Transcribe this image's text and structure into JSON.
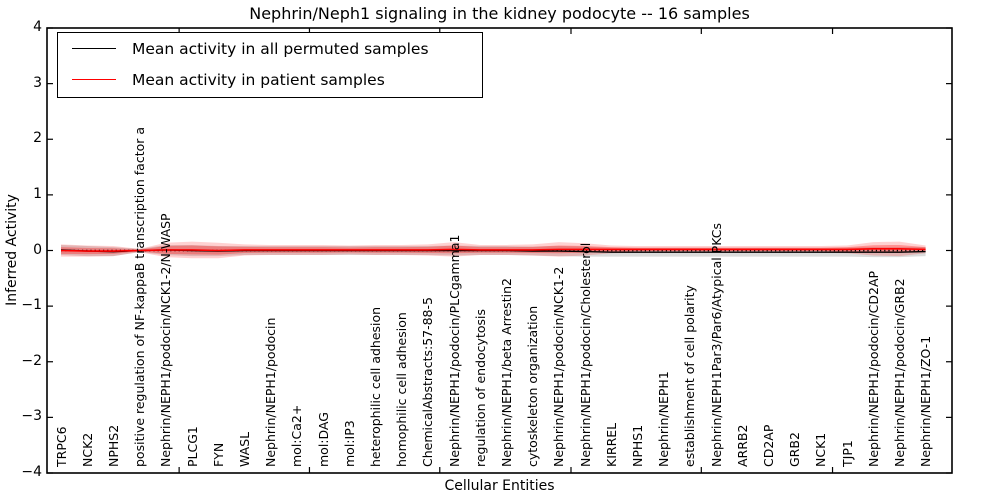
{
  "figure": {
    "title": "Nephrin/Neph1 signaling in the kidney podocyte -- 16 samples",
    "xlabel": "Cellular Entities",
    "ylabel": "Inferred Activity"
  },
  "legend": {
    "entries": [
      {
        "label": "Mean activity in all permuted samples",
        "color": "#000000"
      },
      {
        "label": "Mean activity in patient samples",
        "color": "#ff0000"
      }
    ]
  },
  "chart_data": {
    "type": "line",
    "title": "Nephrin/Neph1 signaling in the kidney podocyte -- 16 samples",
    "xlabel": "Cellular Entities",
    "ylabel": "Inferred Activity",
    "ylim": [
      -4,
      4
    ],
    "yticks": [
      4,
      3,
      2,
      1,
      0,
      -1,
      -2,
      -3,
      -4
    ],
    "yticklabels": [
      "4",
      "3",
      "2",
      "1",
      "0",
      "−1",
      "−2",
      "−3",
      "−4"
    ],
    "grid": false,
    "legend_position": "upper left",
    "zero_reference_line": 0,
    "categories": [
      "TRPC6",
      "NCK2",
      "NPHS2",
      "positive regulation of NF-kappaB transcription factor a",
      "Nephrin/NEPH1/podocin/NCK1-2/N-WASP",
      "PLCG1",
      "FYN",
      "WASL",
      "Nephrin/NEPH1/podocin",
      "mol:Ca2+",
      "mol:DAG",
      "mol:IP3",
      "heterophilic cell adhesion",
      "homophilic cell adhesion",
      "ChemicalAbstracts:57-88-5",
      "Nephrin/NEPH1/podocin/PLCgamma1",
      "regulation of endocytosis",
      "Nephrin/NEPH1/beta Arrestin2",
      "cytoskeleton organization",
      "Nephrin/NEPH1/podocin/NCK1-2",
      "Nephrin/NEPH1/podocin/Cholesterol",
      "KIRREL",
      "NPHS1",
      "Nephrin/NEPH1",
      "establishment of cell polarity",
      "Nephrin/NEPH1Par3/Par6/Atypical PKCs",
      "ARRB2",
      "CD2AP",
      "GRB2",
      "NCK1",
      "TJP1",
      "Nephrin/NEPH1/podocin/CD2AP",
      "Nephrin/NEPH1/podocin/GRB2",
      "Nephrin/NEPH1/ZO-1"
    ],
    "series": [
      {
        "name": "Mean activity in all permuted samples",
        "color": "#000000",
        "style": "solid",
        "values": [
          0.01,
          -0.01,
          -0.02,
          0.0,
          0.01,
          0.0,
          -0.01,
          0.0,
          0.0,
          0.0,
          0.0,
          0.0,
          0.0,
          0.0,
          0.0,
          0.0,
          0.0,
          0.0,
          -0.01,
          -0.01,
          -0.02,
          -0.03,
          -0.03,
          -0.03,
          -0.03,
          -0.03,
          -0.03,
          -0.03,
          -0.03,
          -0.03,
          -0.03,
          -0.03,
          -0.03,
          -0.02
        ]
      },
      {
        "name": "Mean activity in patient samples",
        "color": "#ff0000",
        "style": "solid",
        "values": [
          0.0,
          -0.01,
          -0.01,
          0.0,
          0.01,
          0.01,
          0.0,
          0.01,
          0.01,
          0.01,
          0.01,
          0.01,
          0.01,
          0.01,
          0.01,
          0.02,
          0.01,
          0.01,
          0.01,
          0.02,
          0.02,
          0.02,
          0.02,
          0.02,
          0.02,
          0.02,
          0.02,
          0.02,
          0.02,
          0.02,
          0.02,
          0.03,
          0.03,
          0.02
        ]
      }
    ],
    "bands": [
      {
        "name": "permuted-sample-range",
        "center_series": 0,
        "color": "#000000",
        "fill_alpha": 0.14,
        "half_widths": [
          0.09,
          0.09,
          0.08,
          0.03,
          0.09,
          0.1,
          0.09,
          0.08,
          0.08,
          0.08,
          0.08,
          0.08,
          0.08,
          0.08,
          0.08,
          0.09,
          0.08,
          0.08,
          0.08,
          0.09,
          0.09,
          0.08,
          0.08,
          0.08,
          0.08,
          0.08,
          0.08,
          0.08,
          0.08,
          0.08,
          0.08,
          0.09,
          0.09,
          0.08
        ]
      },
      {
        "name": "patient-sample-range-outer",
        "center_series": 1,
        "color": "#ff0000",
        "fill_alpha": 0.18,
        "half_widths": [
          0.11,
          0.1,
          0.09,
          0.03,
          0.13,
          0.15,
          0.14,
          0.1,
          0.09,
          0.09,
          0.09,
          0.08,
          0.09,
          0.09,
          0.1,
          0.13,
          0.09,
          0.09,
          0.1,
          0.13,
          0.11,
          0.07,
          0.06,
          0.06,
          0.06,
          0.06,
          0.06,
          0.06,
          0.06,
          0.06,
          0.07,
          0.12,
          0.13,
          0.07
        ]
      },
      {
        "name": "patient-sample-range-inner",
        "center_series": 1,
        "color": "#ff0000",
        "fill_alpha": 0.3,
        "half_widths": [
          0.06,
          0.055,
          0.05,
          0.015,
          0.07,
          0.08,
          0.075,
          0.055,
          0.05,
          0.05,
          0.05,
          0.045,
          0.05,
          0.05,
          0.055,
          0.07,
          0.05,
          0.05,
          0.055,
          0.07,
          0.06,
          0.04,
          0.03,
          0.03,
          0.03,
          0.03,
          0.03,
          0.03,
          0.03,
          0.03,
          0.04,
          0.065,
          0.07,
          0.04
        ]
      }
    ]
  }
}
